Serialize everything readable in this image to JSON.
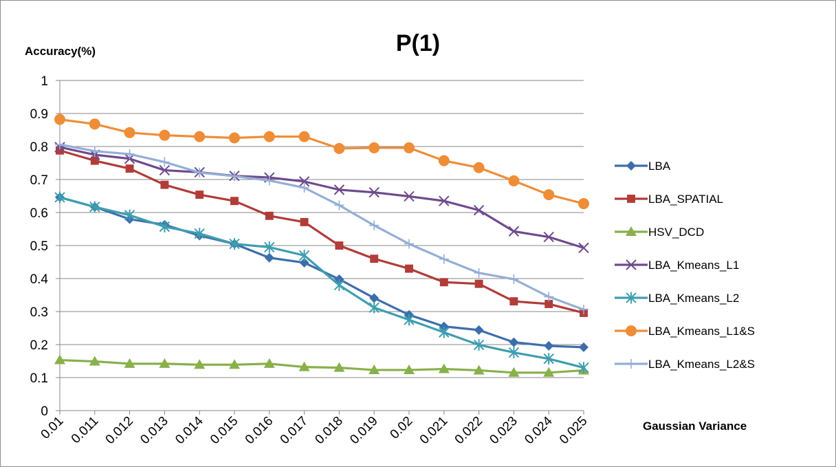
{
  "chart_data": {
    "type": "line",
    "title": "P(1)",
    "ylabel": "Accuracy(%)",
    "xlabel": "Gaussian Variance",
    "categories": [
      "0.01",
      "0.011",
      "0.012",
      "0.013",
      "0.014",
      "0.015",
      "0.016",
      "0.017",
      "0.018",
      "0.019",
      "0.02",
      "0.021",
      "0.022",
      "0.023",
      "0.024",
      "0.025"
    ],
    "ylim": [
      0,
      1
    ],
    "yticks": [
      "0",
      "0.1",
      "0.2",
      "0.3",
      "0.4",
      "0.5",
      "0.6",
      "0.7",
      "0.8",
      "0.9",
      "1"
    ],
    "grid": true,
    "legend": "right",
    "series": [
      {
        "name": "LBA",
        "color": "#3d6eac",
        "marker": "diamond",
        "values": [
          0.646,
          0.617,
          0.58,
          0.563,
          0.53,
          0.505,
          0.463,
          0.448,
          0.398,
          0.341,
          0.29,
          0.255,
          0.244,
          0.207,
          0.196,
          0.192
        ]
      },
      {
        "name": "LBA_SPATIAL",
        "color": "#b13c38",
        "marker": "square",
        "values": [
          0.788,
          0.757,
          0.733,
          0.684,
          0.654,
          0.635,
          0.59,
          0.571,
          0.5,
          0.46,
          0.43,
          0.389,
          0.384,
          0.331,
          0.323,
          0.296
        ]
      },
      {
        "name": "HSV_DCD",
        "color": "#88b04b",
        "marker": "triangle",
        "values": [
          0.153,
          0.149,
          0.142,
          0.142,
          0.139,
          0.139,
          0.142,
          0.132,
          0.13,
          0.123,
          0.123,
          0.126,
          0.122,
          0.115,
          0.115,
          0.122
        ]
      },
      {
        "name": "LBA_Kmeans_L1",
        "color": "#6f4a8d",
        "marker": "x",
        "values": [
          0.798,
          0.775,
          0.763,
          0.728,
          0.722,
          0.711,
          0.706,
          0.694,
          0.669,
          0.661,
          0.649,
          0.635,
          0.607,
          0.543,
          0.526,
          0.493
        ]
      },
      {
        "name": "LBA_Kmeans_L2",
        "color": "#3d9eb0",
        "marker": "star",
        "values": [
          0.646,
          0.617,
          0.592,
          0.557,
          0.536,
          0.505,
          0.495,
          0.47,
          0.38,
          0.312,
          0.275,
          0.237,
          0.199,
          0.176,
          0.157,
          0.13
        ]
      },
      {
        "name": "LBA_Kmeans_L1&S",
        "color": "#ef8d37",
        "marker": "circle",
        "values": [
          0.882,
          0.868,
          0.842,
          0.834,
          0.83,
          0.826,
          0.83,
          0.83,
          0.794,
          0.796,
          0.796,
          0.757,
          0.736,
          0.696,
          0.654,
          0.627
        ]
      },
      {
        "name": "LBA_Kmeans_L2&S",
        "color": "#95aed6",
        "marker": "plus",
        "values": [
          0.806,
          0.786,
          0.777,
          0.753,
          0.721,
          0.71,
          0.697,
          0.675,
          0.622,
          0.561,
          0.505,
          0.459,
          0.417,
          0.398,
          0.345,
          0.306
        ]
      }
    ]
  }
}
